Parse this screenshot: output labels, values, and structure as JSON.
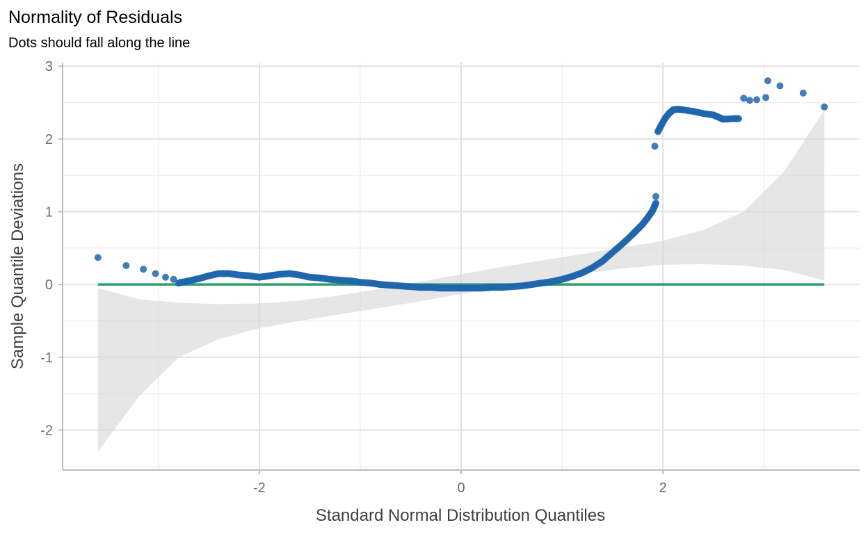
{
  "chart_data": {
    "type": "scatter",
    "title": "Normality of Residuals",
    "subtitle": "Dots should fall along the line",
    "xlabel": "Standard Normal Distribution Quantiles",
    "ylabel": "Sample Quantile Deviations",
    "xlim": [
      -3.95,
      3.95
    ],
    "ylim": [
      -2.55,
      3.05
    ],
    "x_ticks": [
      -2,
      0,
      2
    ],
    "x_tick_labels": [
      "-2",
      "0",
      "2"
    ],
    "y_ticks": [
      -2,
      -1,
      0,
      1,
      2,
      3
    ],
    "y_tick_labels": [
      "-2",
      "-1",
      "0",
      "1",
      "2",
      "3"
    ],
    "grid": true,
    "colors": {
      "points": "#1f66ad",
      "reference_line": "#2e9e6e",
      "band": "#d9d9d9",
      "grid_major": "#e2e2e2",
      "grid_minor": "#ececec",
      "axis": "#bdbdbd"
    },
    "reference_line": {
      "x": [
        -3.6,
        3.6
      ],
      "y": [
        0,
        0
      ]
    },
    "band": {
      "x": [
        -3.6,
        -3.2,
        -2.8,
        -2.4,
        -2.0,
        -1.6,
        -1.2,
        -0.8,
        -0.4,
        0.0,
        0.4,
        0.8,
        1.2,
        1.6,
        2.0,
        2.4,
        2.8,
        3.2,
        3.6
      ],
      "upper": [
        -0.05,
        -0.2,
        -0.25,
        -0.27,
        -0.26,
        -0.22,
        -0.15,
        -0.06,
        0.04,
        0.14,
        0.24,
        0.33,
        0.42,
        0.51,
        0.6,
        0.75,
        1.0,
        1.55,
        2.4
      ],
      "lower": [
        -2.3,
        -1.55,
        -1.0,
        -0.75,
        -0.6,
        -0.5,
        -0.41,
        -0.32,
        -0.23,
        -0.13,
        -0.04,
        0.06,
        0.15,
        0.22,
        0.27,
        0.28,
        0.26,
        0.2,
        0.05
      ]
    },
    "points_curve": {
      "x": [
        -2.8,
        -2.7,
        -2.6,
        -2.5,
        -2.4,
        -2.3,
        -2.2,
        -2.1,
        -2.0,
        -1.9,
        -1.8,
        -1.7,
        -1.6,
        -1.5,
        -1.4,
        -1.3,
        -1.2,
        -1.1,
        -1.0,
        -0.9,
        -0.8,
        -0.7,
        -0.6,
        -0.5,
        -0.4,
        -0.3,
        -0.2,
        -0.1,
        0.0,
        0.1,
        0.2,
        0.3,
        0.4,
        0.5,
        0.6,
        0.7,
        0.8,
        0.9,
        1.0,
        1.1,
        1.2,
        1.3,
        1.4,
        1.5,
        1.6,
        1.7,
        1.75,
        1.8,
        1.85,
        1.9,
        1.93
      ],
      "y": [
        0.02,
        0.05,
        0.08,
        0.12,
        0.15,
        0.15,
        0.13,
        0.12,
        0.1,
        0.12,
        0.14,
        0.15,
        0.13,
        0.1,
        0.09,
        0.07,
        0.06,
        0.05,
        0.03,
        0.02,
        0.0,
        -0.01,
        -0.02,
        -0.03,
        -0.04,
        -0.04,
        -0.05,
        -0.05,
        -0.05,
        -0.05,
        -0.05,
        -0.04,
        -0.04,
        -0.03,
        -0.02,
        0.0,
        0.02,
        0.04,
        0.07,
        0.11,
        0.16,
        0.23,
        0.32,
        0.44,
        0.56,
        0.69,
        0.76,
        0.83,
        0.92,
        1.02,
        1.12
      ],
      "density": 6
    },
    "points_upper_curve": {
      "x": [
        1.95,
        1.98,
        2.02,
        2.06,
        2.1,
        2.15,
        2.2,
        2.3,
        2.4,
        2.5,
        2.55,
        2.6,
        2.7,
        2.75
      ],
      "y": [
        2.1,
        2.18,
        2.28,
        2.35,
        2.4,
        2.41,
        2.4,
        2.38,
        2.35,
        2.33,
        2.3,
        2.27,
        2.28,
        2.28
      ],
      "density": 5
    },
    "points_sparse": {
      "x": [
        -3.6,
        -3.32,
        -3.15,
        -3.03,
        -2.93,
        -2.85,
        -2.78,
        1.92,
        1.93,
        2.8,
        2.86,
        2.93,
        3.02,
        3.04,
        3.16,
        3.39,
        3.6
      ],
      "y": [
        0.37,
        0.26,
        0.21,
        0.15,
        0.1,
        0.07,
        0.03,
        1.9,
        1.21,
        2.56,
        2.53,
        2.54,
        2.57,
        2.8,
        2.73,
        2.63,
        2.44
      ]
    }
  }
}
